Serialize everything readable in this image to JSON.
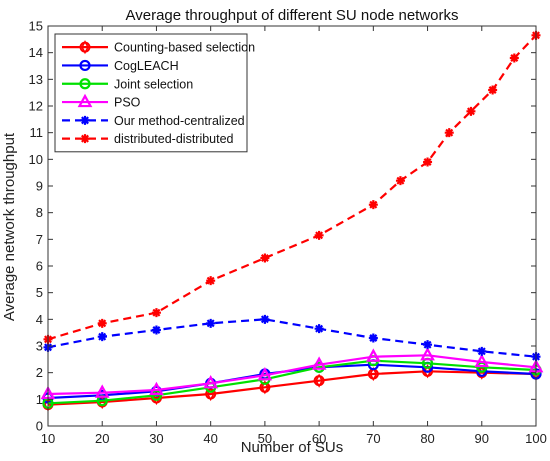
{
  "chart_data": {
    "type": "line",
    "title": "Average throughput of different SU node networks",
    "xlabel": "Number of SUs",
    "ylabel": "Average network throughput",
    "xlim": [
      10,
      100
    ],
    "ylim": [
      0,
      15
    ],
    "xticks": [
      10,
      20,
      30,
      40,
      50,
      60,
      70,
      80,
      90,
      100
    ],
    "yticks": [
      0,
      1,
      2,
      3,
      4,
      5,
      6,
      7,
      8,
      9,
      10,
      11,
      12,
      13,
      14,
      15
    ],
    "grid": false,
    "legend_position": "top-left",
    "series": [
      {
        "name": "Counting-based selection",
        "color": "#ff0000",
        "line_style": "solid",
        "marker": "diamond-circle",
        "points": [
          [
            10,
            0.8
          ],
          [
            20,
            0.9
          ],
          [
            30,
            1.05
          ],
          [
            40,
            1.2
          ],
          [
            50,
            1.45
          ],
          [
            60,
            1.7
          ],
          [
            70,
            1.95
          ],
          [
            80,
            2.05
          ],
          [
            90,
            2.0
          ],
          [
            100,
            1.95
          ]
        ]
      },
      {
        "name": "CogLEACH",
        "color": "#0000ff",
        "line_style": "solid",
        "marker": "circle",
        "points": [
          [
            10,
            1.05
          ],
          [
            20,
            1.15
          ],
          [
            30,
            1.3
          ],
          [
            40,
            1.6
          ],
          [
            50,
            1.95
          ],
          [
            60,
            2.2
          ],
          [
            70,
            2.3
          ],
          [
            80,
            2.2
          ],
          [
            90,
            2.05
          ],
          [
            100,
            1.95
          ]
        ]
      },
      {
        "name": "Joint selection",
        "color": "#00e000",
        "line_style": "solid",
        "marker": "circle",
        "points": [
          [
            10,
            0.85
          ],
          [
            20,
            0.95
          ],
          [
            30,
            1.15
          ],
          [
            40,
            1.45
          ],
          [
            50,
            1.75
          ],
          [
            60,
            2.2
          ],
          [
            70,
            2.45
          ],
          [
            80,
            2.35
          ],
          [
            90,
            2.2
          ],
          [
            100,
            2.1
          ]
        ]
      },
      {
        "name": "PSO",
        "color": "#ff00ff",
        "line_style": "solid",
        "marker": "triangle",
        "points": [
          [
            10,
            1.2
          ],
          [
            20,
            1.25
          ],
          [
            30,
            1.35
          ],
          [
            40,
            1.6
          ],
          [
            50,
            1.9
          ],
          [
            60,
            2.3
          ],
          [
            70,
            2.6
          ],
          [
            80,
            2.65
          ],
          [
            90,
            2.4
          ],
          [
            100,
            2.2
          ]
        ]
      },
      {
        "name": "Our method-centralized",
        "color": "#0000ff",
        "line_style": "dashed",
        "marker": "asterisk",
        "points": [
          [
            10,
            2.95
          ],
          [
            20,
            3.35
          ],
          [
            30,
            3.6
          ],
          [
            40,
            3.85
          ],
          [
            50,
            4.0
          ],
          [
            60,
            3.65
          ],
          [
            70,
            3.3
          ],
          [
            80,
            3.05
          ],
          [
            90,
            2.8
          ],
          [
            100,
            2.6
          ]
        ]
      },
      {
        "name": "distributed-distributed",
        "color": "#ff0000",
        "line_style": "dashed",
        "marker": "asterisk",
        "points": [
          [
            10,
            3.25
          ],
          [
            20,
            3.85
          ],
          [
            30,
            4.25
          ],
          [
            40,
            5.45
          ],
          [
            50,
            6.3
          ],
          [
            60,
            7.15
          ],
          [
            70,
            8.3
          ],
          [
            75,
            9.2
          ],
          [
            80,
            9.9
          ],
          [
            84,
            11.0
          ],
          [
            88,
            11.8
          ],
          [
            92,
            12.6
          ],
          [
            96,
            13.8
          ],
          [
            100,
            14.65
          ]
        ]
      }
    ]
  }
}
